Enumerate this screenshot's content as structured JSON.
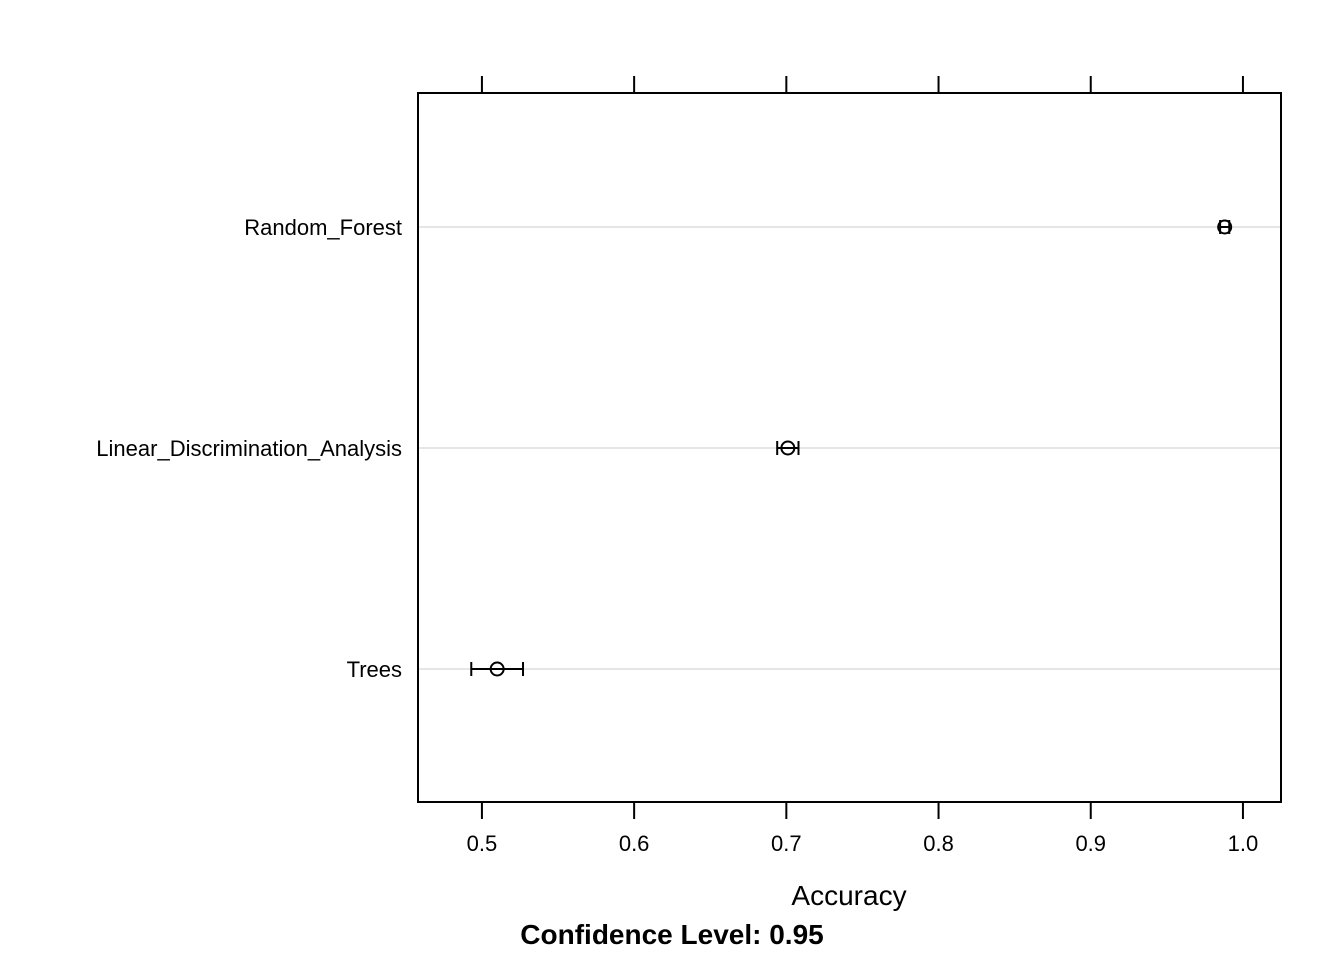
{
  "chart_data": {
    "type": "dotplot",
    "categories": [
      "Random_Forest",
      "Linear_Discrimination_Analysis",
      "Trees"
    ],
    "estimates": [
      0.988,
      0.701,
      0.51
    ],
    "lower": [
      0.985,
      0.694,
      0.493
    ],
    "upper": [
      0.991,
      0.708,
      0.527
    ],
    "xlabel": "Accuracy",
    "sub": "Confidence Level: 0.95",
    "xticks": [
      0.5,
      0.6,
      0.7,
      0.8,
      0.9,
      1.0
    ],
    "xtick_labels": [
      "0.5",
      "0.6",
      "0.7",
      "0.8",
      "0.9",
      "1.0"
    ],
    "xlim": [
      0.458,
      1.025
    ],
    "grid": "horizontal",
    "colors": {
      "marks": "#000000",
      "grid": "#e6e6e6",
      "frame": "#000000"
    }
  }
}
